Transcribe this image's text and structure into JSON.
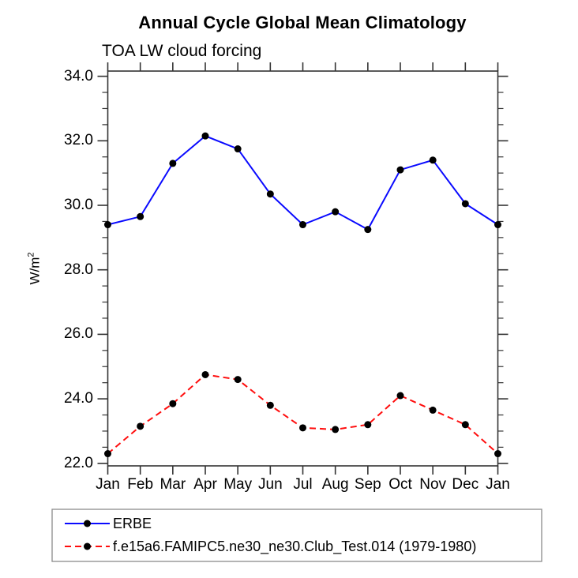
{
  "page": {
    "background": "#ffffff"
  },
  "chart_data": {
    "type": "line",
    "title": "Annual Cycle Global Mean Climatology",
    "subtitle": "TOA LW cloud forcing",
    "ylabel_base": "W/m",
    "ylabel_sup": "2",
    "x_categories": [
      "Jan",
      "Feb",
      "Mar",
      "Apr",
      "May",
      "Jun",
      "Jul",
      "Aug",
      "Sep",
      "Oct",
      "Nov",
      "Dec",
      "Jan"
    ],
    "y_axis": {
      "unit": "W/m2",
      "axis_min_drawn": 21.9,
      "axis_max_drawn": 34.15,
      "major_ticks": [
        22.0,
        24.0,
        26.0,
        28.0,
        30.0,
        32.0,
        34.0
      ],
      "minor_step": 0.5,
      "tick_decimals": 1
    },
    "grid": "off",
    "legend_position": "bottom-left-box",
    "axis_color": "#333333",
    "legend_border_color": "#8c8c8c",
    "marker_color": "#000000",
    "series": [
      {
        "name": "ERBE",
        "color": "#0a0aff",
        "style": "solid",
        "marker": "circle",
        "values": [
          29.4,
          29.65,
          31.3,
          32.15,
          31.75,
          30.35,
          29.4,
          29.8,
          29.25,
          31.1,
          31.4,
          30.05,
          29.4
        ]
      },
      {
        "name": "f.e15a6.FAMIPC5.ne30_ne30.Club_Test.014 (1979-1980)",
        "color": "#ff0d0d",
        "style": "dashed",
        "marker": "circle",
        "values": [
          22.3,
          23.15,
          23.85,
          24.75,
          24.6,
          23.8,
          23.1,
          23.05,
          23.2,
          24.1,
          23.65,
          23.2,
          22.3
        ]
      }
    ]
  }
}
